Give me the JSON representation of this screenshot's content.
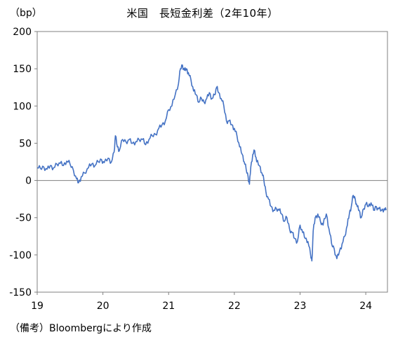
{
  "chart_data": {
    "type": "line",
    "title": "米国　長短金利差（2年10年）",
    "unit_label": "（bp）",
    "source": "（備考）Bloombergにより作成",
    "xlabel": "",
    "ylabel": "",
    "xlim": [
      2019.0,
      2024.33
    ],
    "ylim": [
      -150,
      200
    ],
    "y_ticks": [
      200,
      150,
      100,
      50,
      0,
      -50,
      -100,
      -150
    ],
    "x_ticks": [
      {
        "value": 2019,
        "label": "19"
      },
      {
        "value": 2020,
        "label": "20"
      },
      {
        "value": 2021,
        "label": "21"
      },
      {
        "value": 2022,
        "label": "22"
      },
      {
        "value": 2023,
        "label": "23"
      },
      {
        "value": 2024,
        "label": "24"
      }
    ],
    "grid": false,
    "zero_line": true,
    "line_color": "#4472C4",
    "axis_color": "#808080",
    "series": [
      {
        "values": [
          [
            2019.0,
            17
          ],
          [
            2019.05,
            16
          ],
          [
            2019.1,
            18
          ],
          [
            2019.15,
            15
          ],
          [
            2019.2,
            20
          ],
          [
            2019.25,
            17
          ],
          [
            2019.3,
            22
          ],
          [
            2019.35,
            23
          ],
          [
            2019.4,
            20
          ],
          [
            2019.45,
            26
          ],
          [
            2019.5,
            22
          ],
          [
            2019.55,
            14
          ],
          [
            2019.6,
            2
          ],
          [
            2019.63,
            -3
          ],
          [
            2019.67,
            5
          ],
          [
            2019.72,
            10
          ],
          [
            2019.78,
            17
          ],
          [
            2019.83,
            22
          ],
          [
            2019.88,
            20
          ],
          [
            2019.93,
            25
          ],
          [
            2019.98,
            28
          ],
          [
            2020.02,
            24
          ],
          [
            2020.08,
            30
          ],
          [
            2020.13,
            25
          ],
          [
            2020.17,
            38
          ],
          [
            2020.19,
            60
          ],
          [
            2020.22,
            45
          ],
          [
            2020.25,
            40
          ],
          [
            2020.3,
            55
          ],
          [
            2020.35,
            52
          ],
          [
            2020.4,
            55
          ],
          [
            2020.45,
            50
          ],
          [
            2020.5,
            52
          ],
          [
            2020.55,
            55
          ],
          [
            2020.6,
            55
          ],
          [
            2020.65,
            48
          ],
          [
            2020.7,
            55
          ],
          [
            2020.75,
            60
          ],
          [
            2020.8,
            62
          ],
          [
            2020.85,
            70
          ],
          [
            2020.9,
            75
          ],
          [
            2020.95,
            80
          ],
          [
            2021.0,
            95
          ],
          [
            2021.05,
            100
          ],
          [
            2021.1,
            115
          ],
          [
            2021.15,
            130
          ],
          [
            2021.18,
            150
          ],
          [
            2021.21,
            155
          ],
          [
            2021.24,
            148
          ],
          [
            2021.27,
            150
          ],
          [
            2021.3,
            145
          ],
          [
            2021.34,
            135
          ],
          [
            2021.38,
            120
          ],
          [
            2021.42,
            115
          ],
          [
            2021.46,
            105
          ],
          [
            2021.5,
            110
          ],
          [
            2021.54,
            105
          ],
          [
            2021.58,
            110
          ],
          [
            2021.62,
            118
          ],
          [
            2021.66,
            110
          ],
          [
            2021.7,
            115
          ],
          [
            2021.73,
            125
          ],
          [
            2021.76,
            118
          ],
          [
            2021.8,
            110
          ],
          [
            2021.84,
            100
          ],
          [
            2021.88,
            80
          ],
          [
            2021.92,
            80
          ],
          [
            2021.96,
            75
          ],
          [
            2022.0,
            70
          ],
          [
            2022.04,
            60
          ],
          [
            2022.08,
            45
          ],
          [
            2022.12,
            35
          ],
          [
            2022.15,
            25
          ],
          [
            2022.18,
            15
          ],
          [
            2022.21,
            5
          ],
          [
            2022.23,
            -5
          ],
          [
            2022.25,
            18
          ],
          [
            2022.28,
            35
          ],
          [
            2022.31,
            40
          ],
          [
            2022.34,
            25
          ],
          [
            2022.38,
            20
          ],
          [
            2022.42,
            10
          ],
          [
            2022.45,
            0
          ],
          [
            2022.48,
            -15
          ],
          [
            2022.52,
            -25
          ],
          [
            2022.56,
            -35
          ],
          [
            2022.6,
            -40
          ],
          [
            2022.64,
            -38
          ],
          [
            2022.68,
            -40
          ],
          [
            2022.72,
            -45
          ],
          [
            2022.76,
            -55
          ],
          [
            2022.8,
            -50
          ],
          [
            2022.84,
            -65
          ],
          [
            2022.88,
            -70
          ],
          [
            2022.92,
            -78
          ],
          [
            2022.96,
            -82
          ],
          [
            2023.0,
            -60
          ],
          [
            2023.04,
            -70
          ],
          [
            2023.08,
            -78
          ],
          [
            2023.12,
            -82
          ],
          [
            2023.16,
            -100
          ],
          [
            2023.18,
            -108
          ],
          [
            2023.2,
            -68
          ],
          [
            2023.23,
            -50
          ],
          [
            2023.27,
            -45
          ],
          [
            2023.31,
            -55
          ],
          [
            2023.35,
            -60
          ],
          [
            2023.4,
            -45
          ],
          [
            2023.44,
            -65
          ],
          [
            2023.48,
            -85
          ],
          [
            2023.52,
            -92
          ],
          [
            2023.56,
            -105
          ],
          [
            2023.6,
            -95
          ],
          [
            2023.64,
            -85
          ],
          [
            2023.68,
            -75
          ],
          [
            2023.72,
            -60
          ],
          [
            2023.75,
            -45
          ],
          [
            2023.78,
            -35
          ],
          [
            2023.81,
            -20
          ],
          [
            2023.84,
            -25
          ],
          [
            2023.87,
            -35
          ],
          [
            2023.9,
            -40
          ],
          [
            2023.93,
            -50
          ],
          [
            2023.97,
            -38
          ],
          [
            2024.0,
            -32
          ],
          [
            2024.04,
            -35
          ],
          [
            2024.08,
            -30
          ],
          [
            2024.12,
            -40
          ],
          [
            2024.16,
            -35
          ],
          [
            2024.2,
            -38
          ],
          [
            2024.24,
            -40
          ],
          [
            2024.28,
            -38
          ],
          [
            2024.31,
            -40
          ]
        ]
      }
    ]
  }
}
